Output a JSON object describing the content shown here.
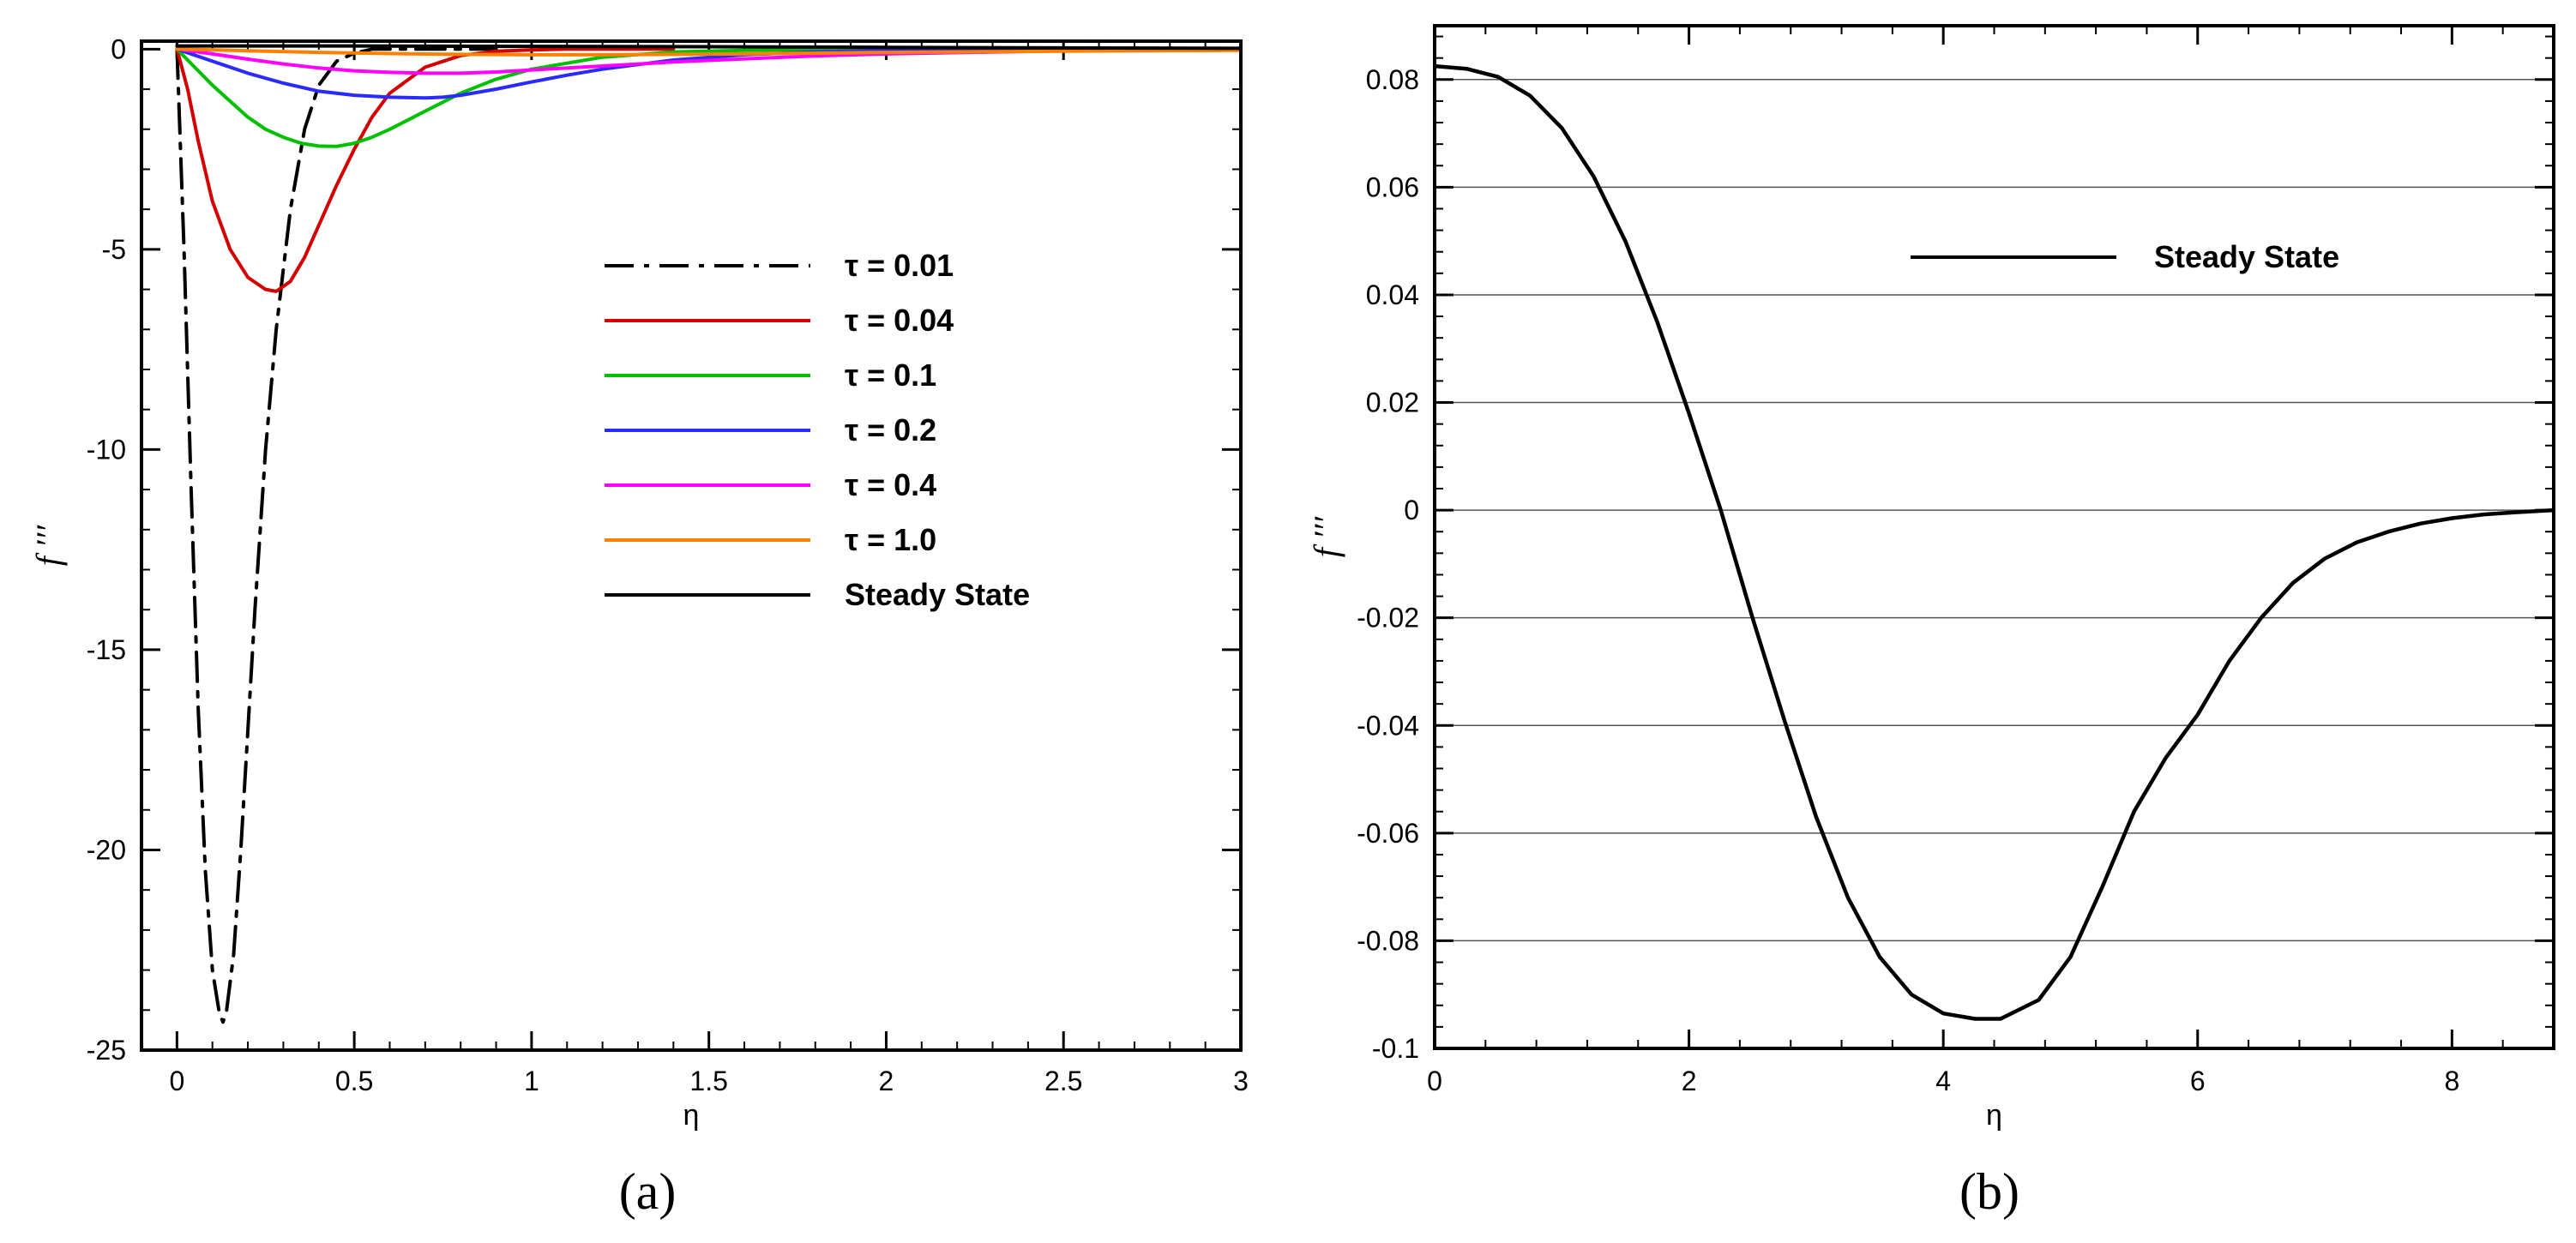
{
  "chart_data": [
    {
      "panel": "a",
      "type": "line",
      "caption": "(a)",
      "xlabel": "η",
      "ylabel": "f ′′′",
      "xlim": [
        -0.1,
        3.0
      ],
      "ylim": [
        -25,
        0.2
      ],
      "xticks": [
        0,
        0.5,
        1,
        1.5,
        2,
        2.5,
        3
      ],
      "xtick_labels": [
        "0",
        "0.5",
        "1",
        "1.5",
        "2",
        "2.5",
        "3"
      ],
      "yticks": [
        -25,
        -20,
        -15,
        -10,
        -5,
        0
      ],
      "ytick_labels": [
        "-25",
        "-20",
        "-15",
        "-10",
        "-5",
        "0"
      ],
      "grid": false,
      "legend_position": "center-right",
      "series": [
        {
          "name": "τ = 0.01",
          "color": "#000000",
          "style": "dashdot",
          "x": [
            0,
            0.02,
            0.04,
            0.06,
            0.08,
            0.1,
            0.12,
            0.13,
            0.14,
            0.16,
            0.18,
            0.2,
            0.22,
            0.25,
            0.28,
            0.32,
            0.36,
            0.4,
            0.45,
            0.5,
            0.55,
            0.6,
            0.7,
            0.8,
            0.9
          ],
          "y": [
            0,
            -5.0,
            -11.0,
            -16.5,
            -20.5,
            -23.0,
            -24.1,
            -24.3,
            -24.0,
            -22.6,
            -20.0,
            -17.0,
            -14.0,
            -10.0,
            -7.0,
            -4.0,
            -2.0,
            -0.9,
            -0.3,
            -0.1,
            0,
            0,
            0,
            0,
            0
          ]
        },
        {
          "name": "τ = 0.04",
          "color": "#d40000",
          "style": "solid",
          "x": [
            0,
            0.03,
            0.06,
            0.1,
            0.15,
            0.2,
            0.25,
            0.28,
            0.32,
            0.36,
            0.4,
            0.45,
            0.5,
            0.55,
            0.6,
            0.7,
            0.8,
            0.9,
            1.0,
            1.1,
            1.2,
            1.4
          ],
          "y": [
            0,
            -1.0,
            -2.3,
            -3.8,
            -5.0,
            -5.7,
            -6.0,
            -6.05,
            -5.8,
            -5.2,
            -4.4,
            -3.4,
            -2.5,
            -1.7,
            -1.1,
            -0.45,
            -0.16,
            -0.05,
            -0.02,
            0,
            0,
            0
          ]
        },
        {
          "name": "τ = 0.1",
          "color": "#00c000",
          "style": "solid",
          "x": [
            0,
            0.05,
            0.1,
            0.15,
            0.2,
            0.25,
            0.3,
            0.35,
            0.4,
            0.45,
            0.5,
            0.55,
            0.6,
            0.7,
            0.8,
            0.9,
            1.0,
            1.2,
            1.4,
            1.6,
            1.8,
            2.0,
            2.5,
            3.0
          ],
          "y": [
            0,
            -0.45,
            -0.9,
            -1.3,
            -1.7,
            -2.0,
            -2.2,
            -2.35,
            -2.42,
            -2.43,
            -2.35,
            -2.2,
            -2.0,
            -1.55,
            -1.1,
            -0.75,
            -0.5,
            -0.2,
            -0.07,
            -0.03,
            -0.01,
            0,
            0,
            0
          ]
        },
        {
          "name": "τ = 0.2",
          "color": "#2a2aff",
          "style": "solid",
          "x": [
            0,
            0.1,
            0.2,
            0.3,
            0.4,
            0.5,
            0.6,
            0.7,
            0.75,
            0.8,
            0.9,
            1.0,
            1.1,
            1.2,
            1.4,
            1.6,
            1.8,
            2.0,
            2.5,
            3.0
          ],
          "y": [
            0,
            -0.3,
            -0.6,
            -0.85,
            -1.05,
            -1.15,
            -1.2,
            -1.22,
            -1.2,
            -1.15,
            -1.0,
            -0.82,
            -0.65,
            -0.5,
            -0.27,
            -0.14,
            -0.07,
            -0.03,
            -0.01,
            0
          ]
        },
        {
          "name": "τ = 0.4",
          "color": "#ff00ff",
          "style": "solid",
          "x": [
            0,
            0.1,
            0.2,
            0.3,
            0.4,
            0.5,
            0.6,
            0.7,
            0.8,
            0.9,
            1.0,
            1.2,
            1.4,
            1.6,
            1.8,
            2.0,
            2.5,
            3.0
          ],
          "y": [
            0,
            -0.12,
            -0.25,
            -0.37,
            -0.47,
            -0.54,
            -0.58,
            -0.6,
            -0.6,
            -0.57,
            -0.52,
            -0.42,
            -0.32,
            -0.24,
            -0.17,
            -0.12,
            -0.04,
            -0.01
          ]
        },
        {
          "name": "τ = 1.0",
          "color": "#ff8000",
          "style": "solid",
          "x": [
            0,
            0.2,
            0.4,
            0.6,
            0.8,
            1.0,
            1.2,
            1.4,
            1.6,
            1.8,
            2.0,
            2.5,
            3.0
          ],
          "y": [
            0,
            -0.04,
            -0.08,
            -0.11,
            -0.13,
            -0.14,
            -0.14,
            -0.13,
            -0.12,
            -0.1,
            -0.08,
            -0.05,
            -0.03
          ]
        },
        {
          "name": "Steady State",
          "color": "#000000",
          "style": "solid",
          "x": [
            0,
            0.5,
            1.0,
            1.5,
            2.0,
            2.5,
            3.0
          ],
          "y": [
            0.08,
            0.08,
            0.07,
            0.06,
            0.045,
            0.03,
            0.02
          ]
        }
      ]
    },
    {
      "panel": "b",
      "type": "line",
      "caption": "(b)",
      "xlabel": "η",
      "ylabel": "f ′′′",
      "xlim": [
        0,
        8.8
      ],
      "ylim": [
        -0.1,
        0.09
      ],
      "xticks": [
        0,
        2,
        4,
        6,
        8
      ],
      "xtick_labels": [
        "0",
        "2",
        "4",
        "6",
        "8"
      ],
      "yticks": [
        -0.1,
        -0.08,
        -0.06,
        -0.04,
        -0.02,
        0,
        0.02,
        0.04,
        0.06,
        0.08
      ],
      "ytick_labels": [
        "-0.1",
        "-0.08",
        "-0.06",
        "-0.04",
        "-0.02",
        "0",
        "0.02",
        "0.04",
        "0.06",
        "0.08"
      ],
      "grid": true,
      "legend_position": "top-right",
      "series": [
        {
          "name": "Steady State",
          "color": "#000000",
          "style": "solid",
          "x": [
            0,
            0.25,
            0.5,
            0.75,
            1.0,
            1.25,
            1.5,
            1.75,
            2.0,
            2.25,
            2.5,
            2.75,
            3.0,
            3.25,
            3.5,
            3.75,
            4.0,
            4.25,
            4.45,
            4.75,
            5.0,
            5.25,
            5.5,
            5.75,
            6.0,
            6.25,
            6.5,
            6.75,
            7.0,
            7.25,
            7.5,
            7.75,
            8.0,
            8.25,
            8.5,
            8.8
          ],
          "y": [
            0.0825,
            0.082,
            0.0805,
            0.077,
            0.071,
            0.062,
            0.05,
            0.035,
            0.018,
            0.0,
            -0.02,
            -0.039,
            -0.057,
            -0.072,
            -0.083,
            -0.09,
            -0.0935,
            -0.0945,
            -0.0945,
            -0.091,
            -0.083,
            -0.07,
            -0.056,
            -0.046,
            -0.038,
            -0.028,
            -0.02,
            -0.0135,
            -0.009,
            -0.006,
            -0.004,
            -0.0025,
            -0.0015,
            -0.0008,
            -0.0004,
            0
          ]
        }
      ]
    }
  ]
}
